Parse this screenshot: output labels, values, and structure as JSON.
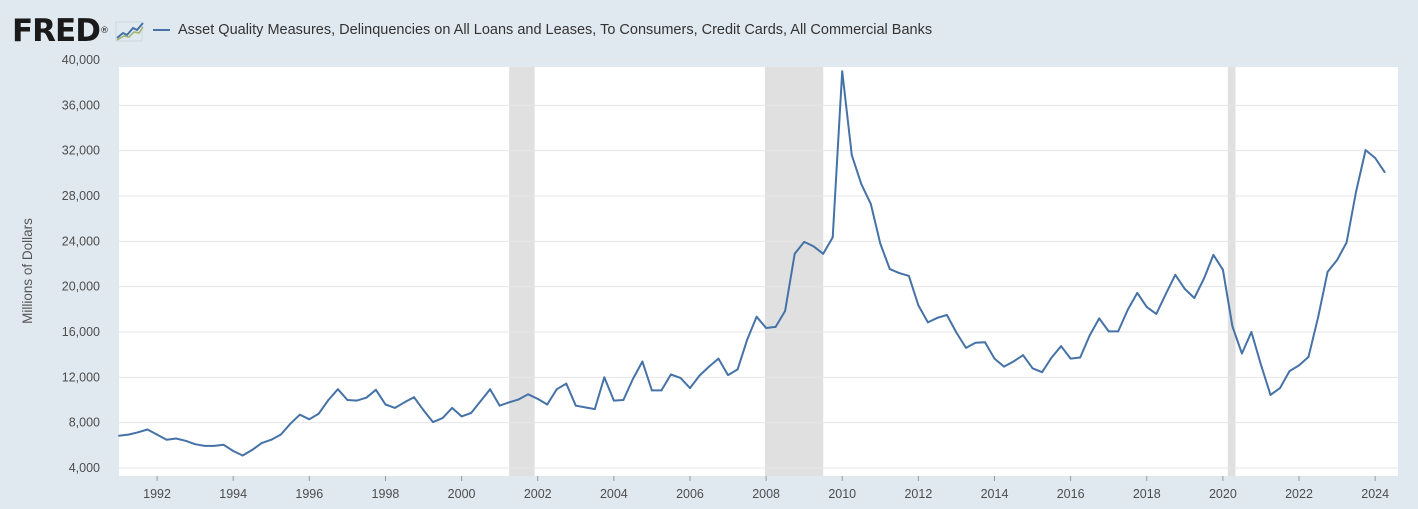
{
  "brand": {
    "logo_text": "FRED",
    "logo_mark": "®"
  },
  "colors": {
    "series": "#4572a7",
    "recession": "#e0e0e0",
    "background": "#e1e9f0",
    "plot": "#ffffff",
    "grid": "#e6e6e6"
  },
  "chart_data": {
    "type": "line",
    "title": "",
    "xlabel": "",
    "ylabel": "Millions of Dollars",
    "ylim": [
      4000,
      40000
    ],
    "xlim": [
      1991.0,
      2024.6
    ],
    "grid": true,
    "legend_position": "top",
    "y_ticks": [
      4000,
      8000,
      12000,
      16000,
      20000,
      24000,
      28000,
      32000,
      36000,
      40000
    ],
    "y_tick_labels": [
      "4,000",
      "8,000",
      "12,000",
      "16,000",
      "20,000",
      "24,000",
      "28,000",
      "32,000",
      "36,000",
      "40,000"
    ],
    "x_ticks": [
      1992,
      1994,
      1996,
      1998,
      2000,
      2002,
      2004,
      2006,
      2008,
      2010,
      2012,
      2014,
      2016,
      2018,
      2020,
      2022,
      2024
    ],
    "x_tick_labels": [
      "1992",
      "1994",
      "1996",
      "1998",
      "2000",
      "2002",
      "2004",
      "2006",
      "2008",
      "2010",
      "2012",
      "2014",
      "2016",
      "2018",
      "2020",
      "2022",
      "2024"
    ],
    "recessions": [
      [
        2001.25,
        2001.92
      ],
      [
        2007.97,
        2009.5
      ],
      [
        2020.13,
        2020.33
      ]
    ],
    "series": [
      {
        "name": "Asset Quality Measures, Delinquencies on All Loans and Leases, To Consumers, Credit Cards, All Commercial Banks",
        "x": [
          1991.0,
          1991.25,
          1991.5,
          1991.75,
          1992.0,
          1992.25,
          1992.5,
          1992.75,
          1993.0,
          1993.25,
          1993.5,
          1993.75,
          1994.0,
          1994.25,
          1994.5,
          1994.75,
          1995.0,
          1995.25,
          1995.5,
          1995.75,
          1996.0,
          1996.25,
          1996.5,
          1996.75,
          1997.0,
          1997.25,
          1997.5,
          1997.75,
          1998.0,
          1998.25,
          1998.5,
          1998.75,
          1999.0,
          1999.25,
          1999.5,
          1999.75,
          2000.0,
          2000.25,
          2000.5,
          2000.75,
          2001.0,
          2001.25,
          2001.5,
          2001.75,
          2002.0,
          2002.25,
          2002.5,
          2002.75,
          2003.0,
          2003.25,
          2003.5,
          2003.75,
          2004.0,
          2004.25,
          2004.5,
          2004.75,
          2005.0,
          2005.25,
          2005.5,
          2005.75,
          2006.0,
          2006.25,
          2006.5,
          2006.75,
          2007.0,
          2007.25,
          2007.5,
          2007.75,
          2008.0,
          2008.25,
          2008.5,
          2008.75,
          2009.0,
          2009.25,
          2009.5,
          2009.75,
          2010.0,
          2010.25,
          2010.5,
          2010.75,
          2011.0,
          2011.25,
          2011.5,
          2011.75,
          2012.0,
          2012.25,
          2012.5,
          2012.75,
          2013.0,
          2013.25,
          2013.5,
          2013.75,
          2014.0,
          2014.25,
          2014.5,
          2014.75,
          2015.0,
          2015.25,
          2015.5,
          2015.75,
          2016.0,
          2016.25,
          2016.5,
          2016.75,
          2017.0,
          2017.25,
          2017.5,
          2017.75,
          2018.0,
          2018.25,
          2018.5,
          2018.75,
          2019.0,
          2019.25,
          2019.5,
          2019.75,
          2020.0,
          2020.25,
          2020.5,
          2020.75,
          2021.0,
          2021.25,
          2021.5,
          2021.75,
          2022.0,
          2022.25,
          2022.5,
          2022.75,
          2023.0,
          2023.25,
          2023.5,
          2023.75,
          2024.0,
          2024.25
        ],
        "values": [
          6850,
          6950,
          7150,
          7400,
          6950,
          6500,
          6600,
          6400,
          6100,
          5950,
          5950,
          6050,
          5500,
          5100,
          5600,
          6200,
          6500,
          6950,
          7900,
          8700,
          8300,
          8800,
          10000,
          10950,
          10000,
          9950,
          10200,
          10900,
          9600,
          9300,
          9800,
          10250,
          9100,
          8050,
          8400,
          9300,
          8550,
          8850,
          9900,
          10950,
          9500,
          9800,
          10050,
          10500,
          10100,
          9600,
          10950,
          11450,
          9500,
          9350,
          9200,
          12000,
          9950,
          10000,
          11850,
          13400,
          10850,
          10850,
          12250,
          11950,
          11050,
          12150,
          12950,
          13650,
          12200,
          12700,
          15300,
          17350,
          16350,
          16450,
          17850,
          22900,
          23950,
          23550,
          22900,
          24350,
          39000,
          31600,
          29050,
          27300,
          23800,
          21550,
          21200,
          20950,
          18350,
          16850,
          17250,
          17500,
          15950,
          14600,
          15050,
          15100,
          13650,
          12950,
          13400,
          13950,
          12800,
          12450,
          13750,
          14750,
          13650,
          13750,
          15700,
          17200,
          16050,
          16050,
          17950,
          19450,
          18200,
          17600,
          19350,
          21050,
          19800,
          19000,
          20700,
          22800,
          21500,
          16500,
          14100,
          16000,
          13100,
          10450,
          11050,
          12550,
          13050,
          13800,
          17300,
          21300,
          22350,
          23900,
          28400,
          32050,
          31350,
          30100
        ]
      }
    ]
  }
}
